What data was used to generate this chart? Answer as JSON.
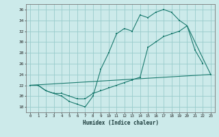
{
  "line1_x": [
    0,
    1,
    2,
    3,
    4,
    5,
    6,
    7,
    8,
    9,
    10,
    11,
    12,
    13,
    14,
    15,
    16,
    17,
    18,
    19,
    20,
    21,
    22
  ],
  "line1_y": [
    22,
    22,
    21,
    20.5,
    20,
    19,
    18.5,
    18,
    20,
    25,
    28,
    31.5,
    32.5,
    32,
    35,
    34.5,
    35.5,
    36,
    35.5,
    34,
    33,
    28.5,
    26
  ],
  "line2_x": [
    0,
    1,
    2,
    3,
    4,
    5,
    6,
    7,
    8,
    9,
    10,
    11,
    12,
    13,
    14,
    15,
    16,
    17,
    18,
    19,
    20,
    23
  ],
  "line2_y": [
    22,
    22,
    21,
    20.5,
    20.5,
    20,
    19.5,
    19.5,
    20.5,
    21,
    21.5,
    22,
    22.5,
    23,
    23.5,
    29,
    30,
    31,
    31.5,
    32,
    33,
    24
  ],
  "line3_x": [
    0,
    23
  ],
  "line3_y": [
    22,
    24
  ],
  "color": "#1a7a6e",
  "bg_color": "#cceaea",
  "grid_color": "#99cccc",
  "xlabel": "Humidex (Indice chaleur)",
  "xlim": [
    -0.5,
    23.5
  ],
  "ylim": [
    17,
    37
  ],
  "xticks": [
    0,
    1,
    2,
    3,
    4,
    5,
    6,
    7,
    8,
    9,
    10,
    11,
    12,
    13,
    14,
    15,
    16,
    17,
    18,
    19,
    20,
    21,
    22,
    23
  ],
  "yticks": [
    18,
    20,
    22,
    24,
    26,
    28,
    30,
    32,
    34,
    36
  ]
}
